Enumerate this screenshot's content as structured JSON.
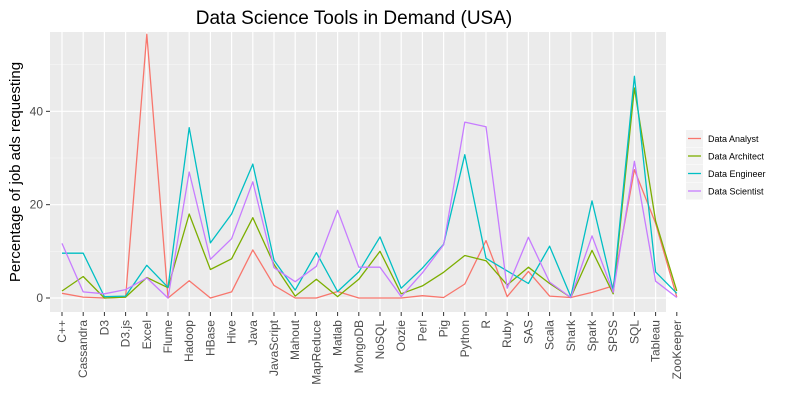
{
  "chart_data": {
    "type": "line",
    "title": "Data Science Tools in Demand (USA)",
    "xlabel": "",
    "ylabel": "Percentage of job ads requesting",
    "ylim": [
      -3,
      57
    ],
    "yticks": [
      0,
      20,
      40
    ],
    "grid": true,
    "legend_position": "right",
    "categories": [
      "C++",
      "Cassandra",
      "D3",
      "D3.js",
      "Excel",
      "Flume",
      "Hadoop",
      "HBase",
      "Hive",
      "Java",
      "JavaScript",
      "Mahout",
      "MapReduce",
      "Matlab",
      "MongoDB",
      "NoSQL",
      "Oozie",
      "Perl",
      "Pig",
      "Python",
      "R",
      "Ruby",
      "SAS",
      "Scala",
      "Shark",
      "Spark",
      "SPSS",
      "SQL",
      "Tableau",
      "ZooKeeper"
    ],
    "series": [
      {
        "name": "Data Analyst",
        "color": "#f8766d",
        "values": [
          1,
          0.2,
          0,
          0.2,
          56.5,
          0,
          3.7,
          0,
          1.3,
          10.3,
          2.7,
          0,
          0,
          1.4,
          0,
          0,
          0,
          0.5,
          0.1,
          3,
          12.3,
          0.3,
          5.7,
          0.4,
          0.1,
          1.2,
          2.6,
          27.5,
          16,
          0.2
        ]
      },
      {
        "name": "Data Architect",
        "color": "#7cae00",
        "values": [
          1.5,
          4.6,
          0,
          0.2,
          4.4,
          2.2,
          18,
          6.1,
          8.4,
          17.2,
          7.2,
          0.4,
          4,
          0.3,
          4,
          10,
          0.9,
          2.6,
          5.5,
          9.1,
          8,
          2.8,
          6.6,
          3.1,
          0.1,
          10.2,
          0.9,
          45,
          16.5,
          1.5
        ]
      },
      {
        "name": "Data Engineer",
        "color": "#00bfc4",
        "values": [
          9.6,
          9.6,
          0.3,
          0.4,
          7,
          2.3,
          36.5,
          11.8,
          18,
          28.7,
          8.1,
          1.7,
          9.7,
          1.4,
          5.6,
          13.1,
          2.1,
          6.4,
          11.5,
          30.7,
          8.5,
          5.8,
          3.1,
          11.1,
          0.3,
          20.8,
          1.6,
          47.5,
          5.6,
          1
        ]
      },
      {
        "name": "Data Scientist",
        "color": "#c77cff",
        "values": [
          11.7,
          1.3,
          0.9,
          1.8,
          4.3,
          0,
          27,
          8.3,
          12.7,
          24.9,
          6.5,
          3.5,
          6.8,
          18.8,
          6.6,
          6.6,
          0.3,
          5.4,
          11.4,
          37.7,
          36.7,
          2.1,
          13,
          3.4,
          0.1,
          13.3,
          1.2,
          29.3,
          3.6,
          0.1
        ]
      }
    ]
  }
}
